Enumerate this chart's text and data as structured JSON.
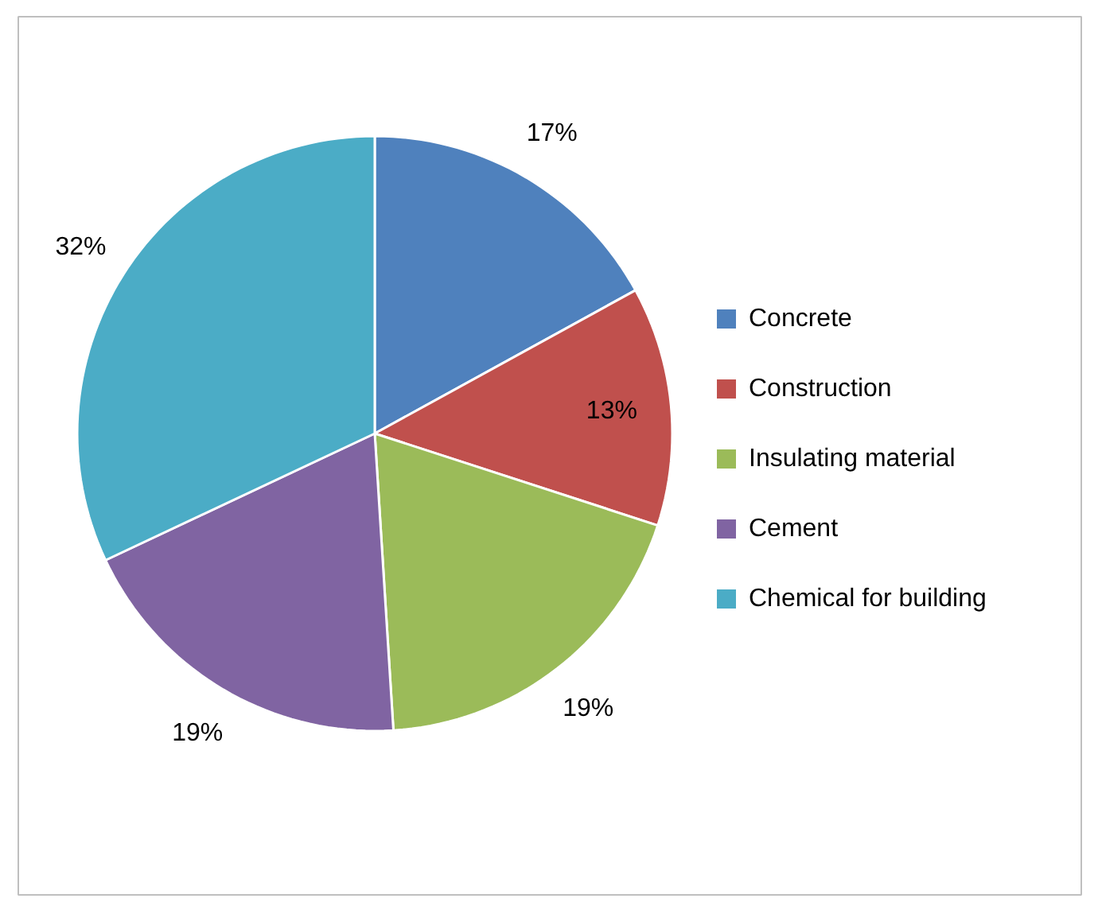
{
  "chart_data": {
    "type": "pie",
    "categories": [
      "Concrete",
      "Construction",
      "Insulating material",
      "Cement",
      "Chemical for building"
    ],
    "values": [
      17,
      13,
      19,
      19,
      32
    ],
    "colors": [
      "#4f81bd",
      "#c0504d",
      "#9bbb59",
      "#8064a2",
      "#4bacc6"
    ],
    "value_labels": [
      "17%",
      "13%",
      "19%",
      "19%",
      "32%"
    ],
    "legend": "right"
  }
}
